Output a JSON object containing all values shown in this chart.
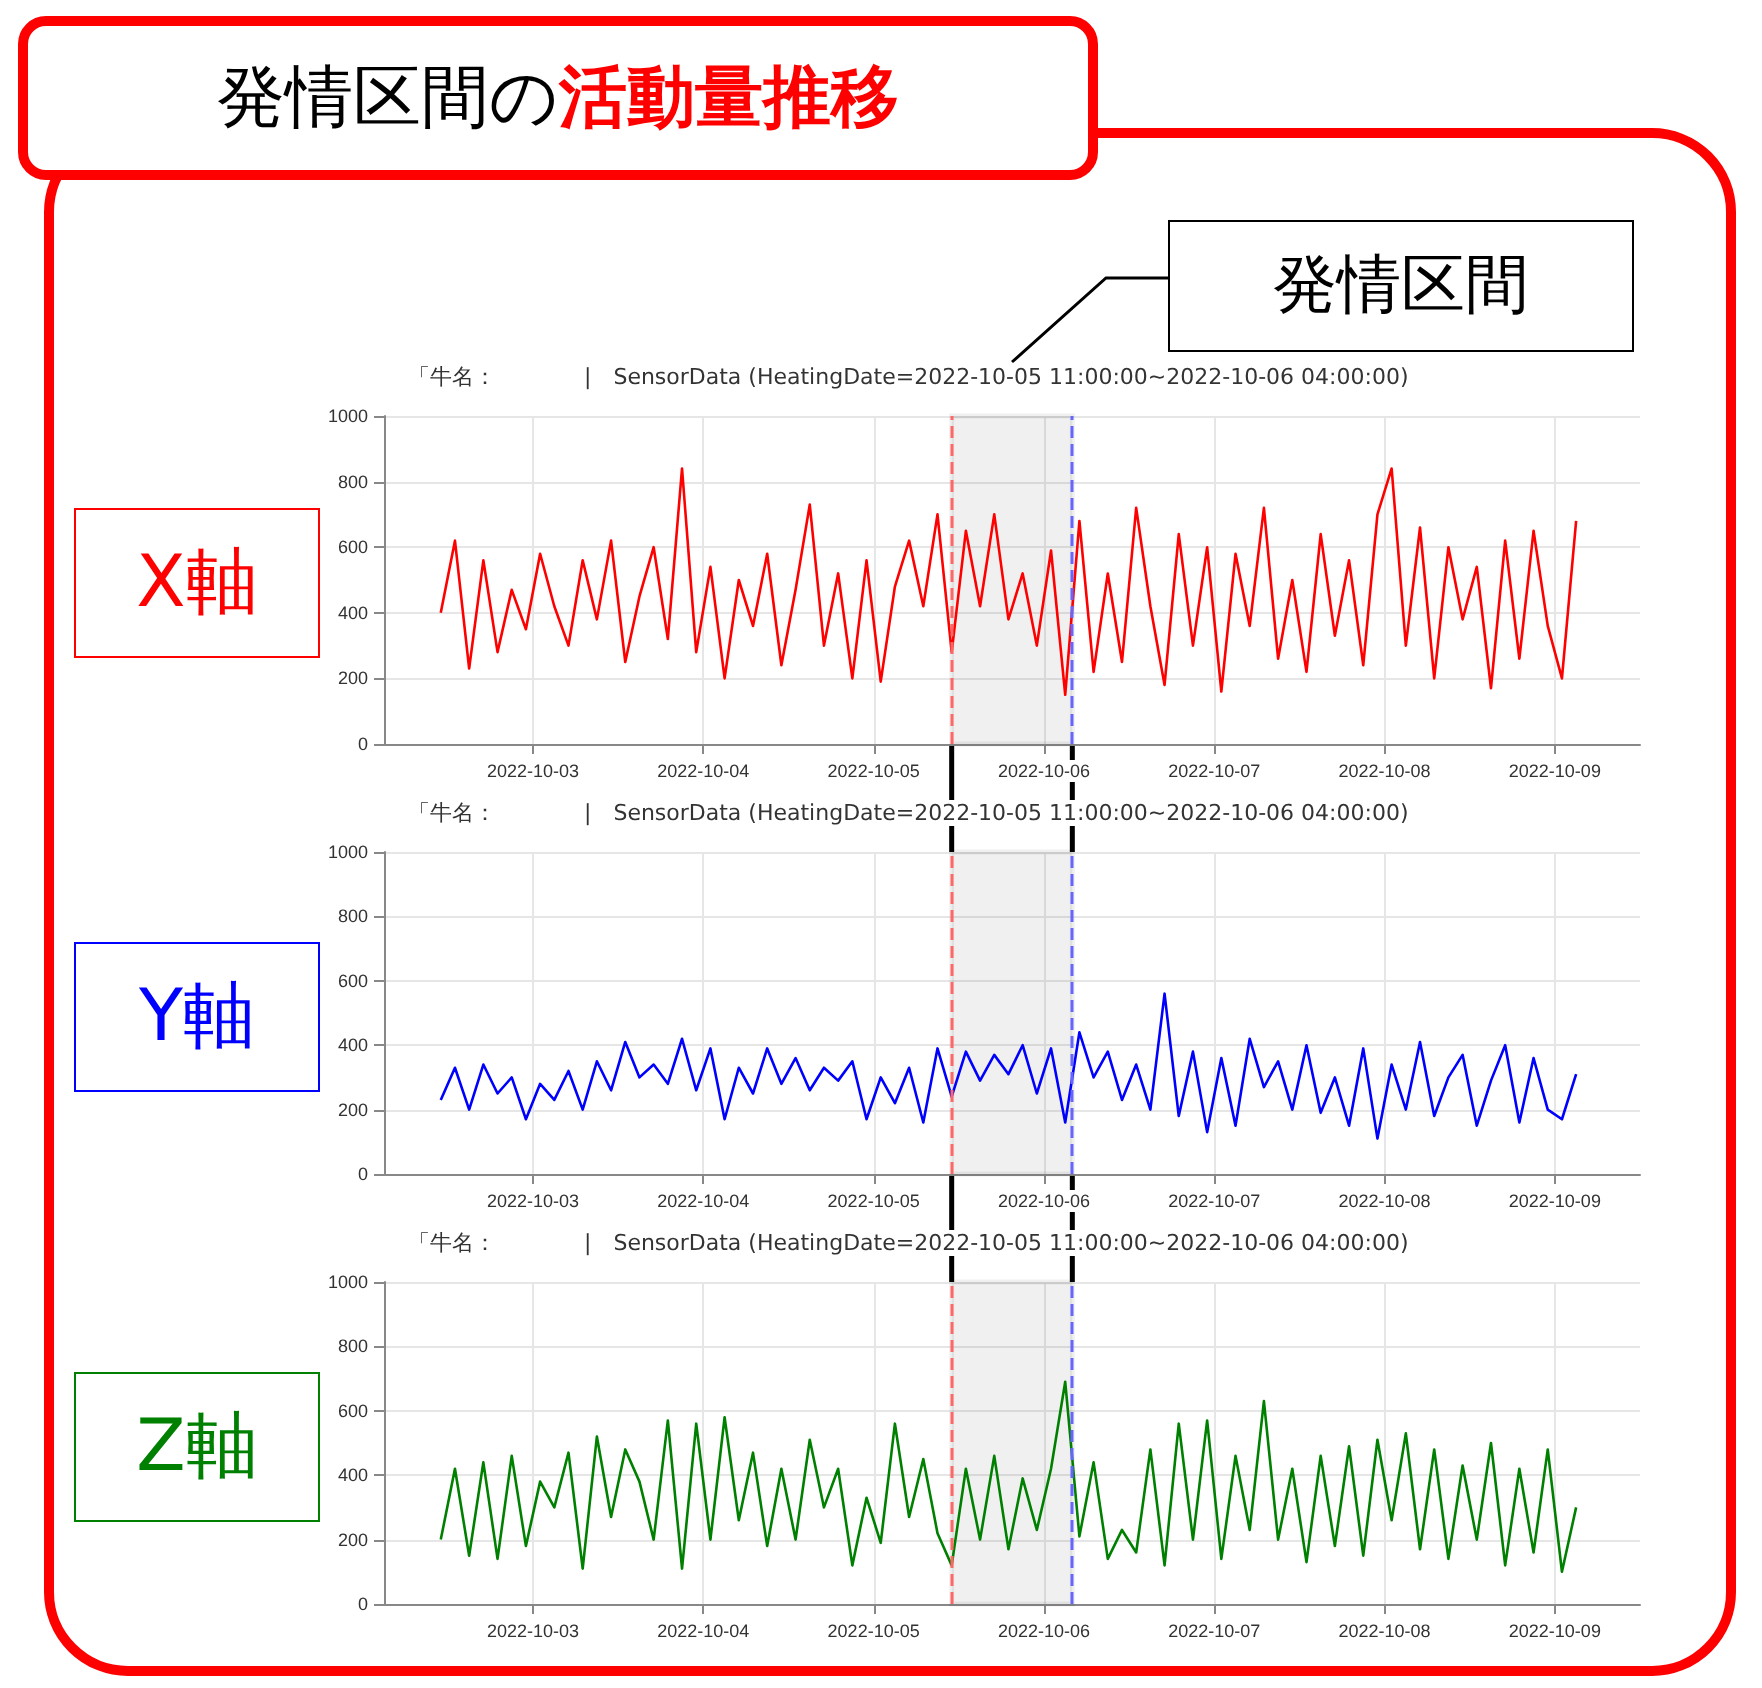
{
  "chart_data": [
    {
      "type": "line",
      "title": "「牛名：　　　　|　SensorData (HeatingDate=2022-10-05 11:00:00~2022-10-06 04:00:00)",
      "ylabel": "X軸",
      "annotations": [
        "発情区間の",
        "活動量推移",
        "発情区間"
      ],
      "x": [
        "2022-10-02T11:00",
        "2022-10-02T13:00",
        "2022-10-02T15:00",
        "2022-10-02T17:00",
        "2022-10-02T19:00",
        "2022-10-02T21:00",
        "2022-10-02T23:00",
        "2022-10-03T01:00",
        "2022-10-03T03:00",
        "2022-10-03T05:00",
        "2022-10-03T07:00",
        "2022-10-03T09:00",
        "2022-10-03T11:00",
        "2022-10-03T13:00",
        "2022-10-03T15:00",
        "2022-10-03T17:00",
        "2022-10-03T19:00",
        "2022-10-03T21:00",
        "2022-10-03T23:00",
        "2022-10-04T01:00",
        "2022-10-04T03:00",
        "2022-10-04T05:00",
        "2022-10-04T07:00",
        "2022-10-04T09:00",
        "2022-10-04T11:00",
        "2022-10-04T13:00",
        "2022-10-04T15:00",
        "2022-10-04T17:00",
        "2022-10-04T19:00",
        "2022-10-04T21:00",
        "2022-10-04T23:00",
        "2022-10-05T01:00",
        "2022-10-05T03:00",
        "2022-10-05T05:00",
        "2022-10-05T07:00",
        "2022-10-05T09:00",
        "2022-10-05T11:00",
        "2022-10-05T13:00",
        "2022-10-05T15:00",
        "2022-10-05T17:00",
        "2022-10-05T19:00",
        "2022-10-05T21:00",
        "2022-10-05T23:00",
        "2022-10-06T01:00",
        "2022-10-06T03:00",
        "2022-10-06T05:00",
        "2022-10-06T07:00",
        "2022-10-06T09:00",
        "2022-10-06T11:00",
        "2022-10-06T13:00",
        "2022-10-06T15:00",
        "2022-10-06T17:00",
        "2022-10-06T19:00",
        "2022-10-06T21:00",
        "2022-10-06T23:00",
        "2022-10-07T01:00",
        "2022-10-07T03:00",
        "2022-10-07T05:00",
        "2022-10-07T07:00",
        "2022-10-07T09:00",
        "2022-10-07T11:00",
        "2022-10-07T13:00",
        "2022-10-07T15:00",
        "2022-10-07T17:00",
        "2022-10-07T19:00",
        "2022-10-07T21:00",
        "2022-10-07T23:00",
        "2022-10-08T01:00",
        "2022-10-08T03:00",
        "2022-10-08T05:00",
        "2022-10-08T07:00",
        "2022-10-08T09:00",
        "2022-10-08T11:00",
        "2022-10-08T13:00",
        "2022-10-08T15:00",
        "2022-10-08T17:00",
        "2022-10-08T19:00",
        "2022-10-08T21:00",
        "2022-10-08T23:00",
        "2022-10-09T01:00",
        "2022-10-09T03:00"
      ],
      "series": [
        {
          "color": "#ff0000",
          "values": [
            400,
            620,
            230,
            560,
            280,
            470,
            350,
            580,
            420,
            300,
            560,
            380,
            620,
            250,
            450,
            600,
            320,
            840,
            280,
            540,
            200,
            500,
            360,
            580,
            240,
            470,
            730,
            300,
            520,
            200,
            560,
            190,
            480,
            620,
            420,
            700,
            280,
            650,
            420,
            700,
            380,
            520,
            300,
            590,
            150,
            680,
            220,
            520,
            250,
            720,
            420,
            180,
            640,
            300,
            600,
            160,
            580,
            360,
            720,
            260,
            500,
            220,
            640,
            330,
            560,
            240,
            700,
            840,
            300,
            660,
            200,
            600,
            380,
            540,
            170,
            620,
            260,
            650,
            360,
            200,
            680
          ]
        }
      ],
      "xlim": [
        "2022-10-02T03:00",
        "2022-10-09T12:00"
      ],
      "xticks": [
        "2022-10-03",
        "2022-10-04",
        "2022-10-05",
        "2022-10-06",
        "2022-10-07",
        "2022-10-08",
        "2022-10-09"
      ],
      "ylim": [
        0,
        1000
      ],
      "yticks": [
        0,
        200,
        400,
        600,
        800,
        1000
      ],
      "grid": true,
      "bands": [
        {
          "axis": "x",
          "from": "2022-10-05T11:00",
          "to": "2022-10-06T04:00",
          "color": "#000000"
        }
      ],
      "ref_lines": [
        {
          "axis": "x",
          "value": "2022-10-05T11:00",
          "color": "#ff6666",
          "line_style": "dashed"
        },
        {
          "axis": "x",
          "value": "2022-10-06T04:00",
          "color": "#6666ff",
          "line_style": "dashed"
        }
      ]
    },
    {
      "type": "line",
      "title": "「牛名：　　　　|　SensorData (HeatingDate=2022-10-05 11:00:00~2022-10-06 04:00:00)",
      "ylabel": "Y軸",
      "x": [
        "2022-10-02T11:00",
        "2022-10-02T13:00",
        "2022-10-02T15:00",
        "2022-10-02T17:00",
        "2022-10-02T19:00",
        "2022-10-02T21:00",
        "2022-10-02T23:00",
        "2022-10-03T01:00",
        "2022-10-03T03:00",
        "2022-10-03T05:00",
        "2022-10-03T07:00",
        "2022-10-03T09:00",
        "2022-10-03T11:00",
        "2022-10-03T13:00",
        "2022-10-03T15:00",
        "2022-10-03T17:00",
        "2022-10-03T19:00",
        "2022-10-03T21:00",
        "2022-10-03T23:00",
        "2022-10-04T01:00",
        "2022-10-04T03:00",
        "2022-10-04T05:00",
        "2022-10-04T07:00",
        "2022-10-04T09:00",
        "2022-10-04T11:00",
        "2022-10-04T13:00",
        "2022-10-04T15:00",
        "2022-10-04T17:00",
        "2022-10-04T19:00",
        "2022-10-04T21:00",
        "2022-10-04T23:00",
        "2022-10-05T01:00",
        "2022-10-05T03:00",
        "2022-10-05T05:00",
        "2022-10-05T07:00",
        "2022-10-05T09:00",
        "2022-10-05T11:00",
        "2022-10-05T13:00",
        "2022-10-05T15:00",
        "2022-10-05T17:00",
        "2022-10-05T19:00",
        "2022-10-05T21:00",
        "2022-10-05T23:00",
        "2022-10-06T01:00",
        "2022-10-06T03:00",
        "2022-10-06T05:00",
        "2022-10-06T07:00",
        "2022-10-06T09:00",
        "2022-10-06T11:00",
        "2022-10-06T13:00",
        "2022-10-06T15:00",
        "2022-10-06T17:00",
        "2022-10-06T19:00",
        "2022-10-06T21:00",
        "2022-10-06T23:00",
        "2022-10-07T01:00",
        "2022-10-07T03:00",
        "2022-10-07T05:00",
        "2022-10-07T07:00",
        "2022-10-07T09:00",
        "2022-10-07T11:00",
        "2022-10-07T13:00",
        "2022-10-07T15:00",
        "2022-10-07T17:00",
        "2022-10-07T19:00",
        "2022-10-07T21:00",
        "2022-10-07T23:00",
        "2022-10-08T01:00",
        "2022-10-08T03:00",
        "2022-10-08T05:00",
        "2022-10-08T07:00",
        "2022-10-08T09:00",
        "2022-10-08T11:00",
        "2022-10-08T13:00",
        "2022-10-08T15:00",
        "2022-10-08T17:00",
        "2022-10-08T19:00",
        "2022-10-08T21:00",
        "2022-10-08T23:00",
        "2022-10-09T01:00",
        "2022-10-09T03:00"
      ],
      "series": [
        {
          "color": "#0000ff",
          "values": [
            230,
            330,
            200,
            340,
            250,
            300,
            170,
            280,
            230,
            320,
            200,
            350,
            260,
            410,
            300,
            340,
            280,
            420,
            260,
            390,
            170,
            330,
            250,
            390,
            280,
            360,
            260,
            330,
            290,
            350,
            170,
            300,
            220,
            330,
            160,
            390,
            240,
            380,
            290,
            370,
            310,
            400,
            250,
            390,
            160,
            440,
            300,
            380,
            230,
            340,
            200,
            560,
            180,
            380,
            130,
            360,
            150,
            420,
            270,
            350,
            200,
            400,
            190,
            300,
            150,
            390,
            110,
            340,
            200,
            410,
            180,
            300,
            370,
            150,
            290,
            400,
            160,
            360,
            200,
            170,
            310
          ]
        }
      ],
      "xlim": [
        "2022-10-02T03:00",
        "2022-10-09T12:00"
      ],
      "xticks": [
        "2022-10-03",
        "2022-10-04",
        "2022-10-05",
        "2022-10-06",
        "2022-10-07",
        "2022-10-08",
        "2022-10-09"
      ],
      "ylim": [
        0,
        1000
      ],
      "yticks": [
        0,
        200,
        400,
        600,
        800,
        1000
      ],
      "grid": true,
      "bands": [
        {
          "axis": "x",
          "from": "2022-10-05T11:00",
          "to": "2022-10-06T04:00",
          "color": "#000000"
        }
      ],
      "ref_lines": [
        {
          "axis": "x",
          "value": "2022-10-05T11:00",
          "color": "#ff6666",
          "line_style": "dashed"
        },
        {
          "axis": "x",
          "value": "2022-10-06T04:00",
          "color": "#6666ff",
          "line_style": "dashed"
        }
      ]
    },
    {
      "type": "line",
      "title": "「牛名：　　　　|　SensorData (HeatingDate=2022-10-05 11:00:00~2022-10-06 04:00:00)",
      "ylabel": "Z軸",
      "x": [
        "2022-10-02T11:00",
        "2022-10-02T13:00",
        "2022-10-02T15:00",
        "2022-10-02T17:00",
        "2022-10-02T19:00",
        "2022-10-02T21:00",
        "2022-10-02T23:00",
        "2022-10-03T01:00",
        "2022-10-03T03:00",
        "2022-10-03T05:00",
        "2022-10-03T07:00",
        "2022-10-03T09:00",
        "2022-10-03T11:00",
        "2022-10-03T13:00",
        "2022-10-03T15:00",
        "2022-10-03T17:00",
        "2022-10-03T19:00",
        "2022-10-03T21:00",
        "2022-10-03T23:00",
        "2022-10-04T01:00",
        "2022-10-04T03:00",
        "2022-10-04T05:00",
        "2022-10-04T07:00",
        "2022-10-04T09:00",
        "2022-10-04T11:00",
        "2022-10-04T13:00",
        "2022-10-04T15:00",
        "2022-10-04T17:00",
        "2022-10-04T19:00",
        "2022-10-04T21:00",
        "2022-10-04T23:00",
        "2022-10-05T01:00",
        "2022-10-05T03:00",
        "2022-10-05T05:00",
        "2022-10-05T07:00",
        "2022-10-05T09:00",
        "2022-10-05T11:00",
        "2022-10-05T13:00",
        "2022-10-05T15:00",
        "2022-10-05T17:00",
        "2022-10-05T19:00",
        "2022-10-05T21:00",
        "2022-10-05T23:00",
        "2022-10-06T01:00",
        "2022-10-06T03:00",
        "2022-10-06T05:00",
        "2022-10-06T07:00",
        "2022-10-06T09:00",
        "2022-10-06T11:00",
        "2022-10-06T13:00",
        "2022-10-06T15:00",
        "2022-10-06T17:00",
        "2022-10-06T19:00",
        "2022-10-06T21:00",
        "2022-10-06T23:00",
        "2022-10-07T01:00",
        "2022-10-07T03:00",
        "2022-10-07T05:00",
        "2022-10-07T07:00",
        "2022-10-07T09:00",
        "2022-10-07T11:00",
        "2022-10-07T13:00",
        "2022-10-07T15:00",
        "2022-10-07T17:00",
        "2022-10-07T19:00",
        "2022-10-07T21:00",
        "2022-10-07T23:00",
        "2022-10-08T01:00",
        "2022-10-08T03:00",
        "2022-10-08T05:00",
        "2022-10-08T07:00",
        "2022-10-08T09:00",
        "2022-10-08T11:00",
        "2022-10-08T13:00",
        "2022-10-08T15:00",
        "2022-10-08T17:00",
        "2022-10-08T19:00",
        "2022-10-08T21:00",
        "2022-10-08T23:00",
        "2022-10-09T01:00",
        "2022-10-09T03:00"
      ],
      "series": [
        {
          "color": "#008000",
          "values": [
            200,
            420,
            150,
            440,
            140,
            460,
            180,
            380,
            300,
            470,
            110,
            520,
            270,
            480,
            380,
            200,
            570,
            110,
            560,
            200,
            580,
            260,
            470,
            180,
            420,
            200,
            510,
            300,
            420,
            120,
            330,
            190,
            560,
            270,
            450,
            220,
            120,
            420,
            200,
            460,
            170,
            390,
            230,
            420,
            690,
            210,
            440,
            140,
            230,
            160,
            480,
            120,
            560,
            200,
            570,
            140,
            460,
            230,
            630,
            200,
            420,
            130,
            460,
            180,
            490,
            150,
            510,
            260,
            530,
            170,
            480,
            140,
            430,
            200,
            500,
            120,
            420,
            160,
            480,
            100,
            300
          ]
        }
      ],
      "xlim": [
        "2022-10-02T03:00",
        "2022-10-09T12:00"
      ],
      "xticks": [
        "2022-10-03",
        "2022-10-04",
        "2022-10-05",
        "2022-10-06",
        "2022-10-07",
        "2022-10-08",
        "2022-10-09"
      ],
      "ylim": [
        0,
        1000
      ],
      "yticks": [
        0,
        200,
        400,
        600,
        800,
        1000
      ],
      "grid": true,
      "bands": [
        {
          "axis": "x",
          "from": "2022-10-05T11:00",
          "to": "2022-10-06T04:00",
          "color": "#000000"
        }
      ],
      "ref_lines": [
        {
          "axis": "x",
          "value": "2022-10-05T11:00",
          "color": "#ff6666",
          "line_style": "dashed"
        },
        {
          "axis": "x",
          "value": "2022-10-06T04:00",
          "color": "#6666ff",
          "line_style": "dashed"
        }
      ]
    }
  ]
}
